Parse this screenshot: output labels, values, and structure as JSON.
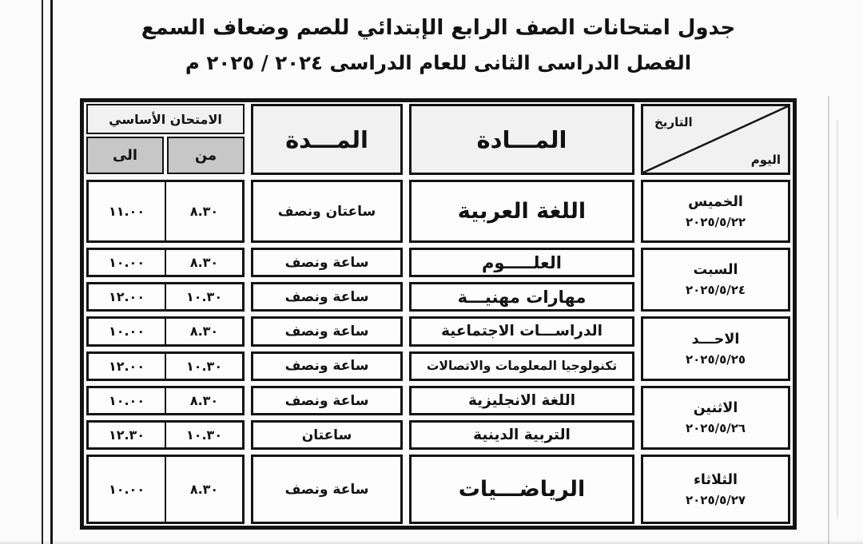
{
  "page": {
    "title_line1": "جدول امتحانات الصف الرابع الإبتدائي للصم وضعاف السمع",
    "title_line2": "الفصل الدراسى الثانى للعام الدراسى  ٢٠٢٤ / ٢٠٢٥ م"
  },
  "table": {
    "header": {
      "corner_top": "التاريخ",
      "corner_bottom": "اليوم",
      "subject": "المـــادة",
      "duration": "المـــدة",
      "exam_group": "الامتحان الأساسي",
      "from": "من",
      "to": "الى"
    },
    "days": [
      {
        "day": "الخميس",
        "date": "٢٠٢٥/٥/٢٢",
        "exams": [
          {
            "subject": "اللغة العربية",
            "size": "xl",
            "duration": "ساعتان ونصف",
            "from": "٨.٣٠",
            "to": "١١.٠٠"
          }
        ]
      },
      {
        "day": "السبت",
        "date": "٢٠٢٥/٥/٢٤",
        "exams": [
          {
            "subject": "العلـــــوم",
            "size": "lg",
            "duration": "ساعة ونصف",
            "from": "٨.٣٠",
            "to": "١٠.٠٠"
          },
          {
            "subject": "مهارات مهنيـــة",
            "size": "lg",
            "duration": "ساعة ونصف",
            "from": "١٠.٣٠",
            "to": "١٢.٠٠"
          }
        ]
      },
      {
        "day": "الاحـــد",
        "date": "٢٠٢٥/٥/٢٥",
        "exams": [
          {
            "subject": "الدراســـات الاجتماعية",
            "size": "md",
            "duration": "ساعة ونصف",
            "from": "٨.٣٠",
            "to": "١٠.٠٠"
          },
          {
            "subject": "تكنولوجيا المعلومات والاتصالات",
            "size": "sm",
            "duration": "ساعة ونصف",
            "from": "١٠.٣٠",
            "to": "١٢.٠٠"
          }
        ]
      },
      {
        "day": "الاثنين",
        "date": "٢٠٢٥/٥/٢٦",
        "exams": [
          {
            "subject": "اللغة الانجليزية",
            "size": "md",
            "duration": "ساعة ونصف",
            "from": "٨.٣٠",
            "to": "١٠.٠٠"
          },
          {
            "subject": "التربية الدينية",
            "size": "md",
            "duration": "ساعتان",
            "from": "١٠.٣٠",
            "to": "١٢.٣٠"
          }
        ]
      },
      {
        "day": "الثلاثاء",
        "date": "٢٠٢٥/٥/٢٧",
        "exams": [
          {
            "subject": "الرياضـــيات",
            "size": "xl",
            "duration": "ساعة ونصف",
            "from": "٨.٣٠",
            "to": "١٠.٠٠"
          }
        ]
      }
    ]
  },
  "colors": {
    "ink": "#121212",
    "page_bg": "#fbfbfb",
    "cell_bg": "#fdfdfd",
    "header_light": "#f1f1f1",
    "header_gray": "#c7c7c7"
  }
}
